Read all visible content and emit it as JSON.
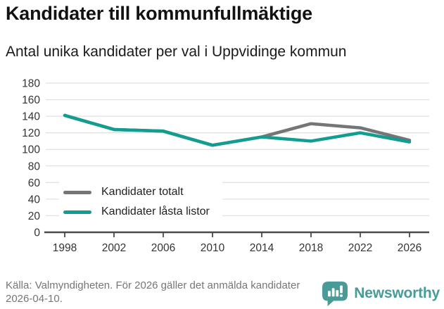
{
  "header": {
    "title": "Kandidater till kommunfullmäktige",
    "subtitle": "Antal unika kandidater per val i Uppvidinge kommun"
  },
  "chart_data": {
    "type": "line",
    "title": "Kandidater till kommunfullmäktige",
    "subtitle": "Antal unika kandidater per val i Uppvidinge kommun",
    "categories": [
      "1998",
      "2002",
      "2006",
      "2010",
      "2014",
      "2018",
      "2022",
      "2026"
    ],
    "series": [
      {
        "name": "Kandidater totalt",
        "color": "#757575",
        "values": [
          141,
          124,
          122,
          105,
          115,
          131,
          126,
          111
        ]
      },
      {
        "name": "Kandidater låsta listor",
        "color": "#119e90",
        "values": [
          141,
          124,
          122,
          105,
          115,
          110,
          120,
          109
        ]
      }
    ],
    "ylim": [
      0,
      180
    ],
    "ytick_step": 20,
    "yticks": [
      0,
      20,
      40,
      60,
      80,
      100,
      120,
      140,
      160,
      180
    ],
    "grid": true,
    "legend_position": "inside-bottom-left",
    "grid_color": "#e1e1e1",
    "axis_color": "#4a4a4a",
    "tick_label_color": "#333333"
  },
  "footer": {
    "source": "Källa: Valmyndigheten. För 2026 gäller det anmälda kandidater 2026-04-10.",
    "brand": "Newsworthy",
    "brand_color": "#4a9b98"
  }
}
